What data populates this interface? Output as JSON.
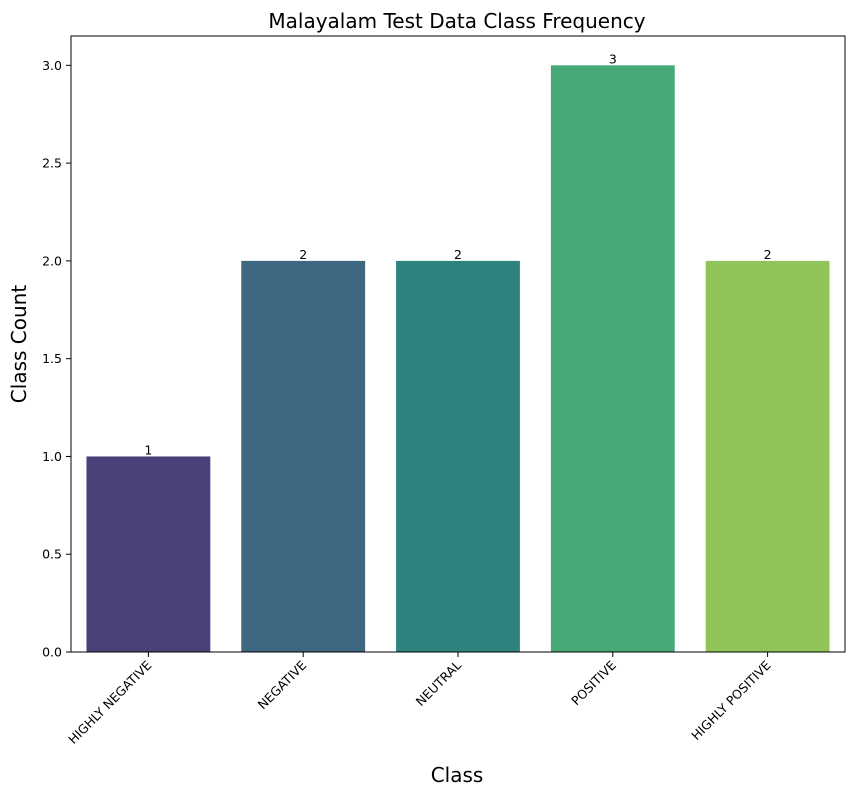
{
  "chart_data": {
    "type": "bar",
    "title": "Malayalam Test Data Class Frequency",
    "xlabel": "Class",
    "ylabel": "Class Count",
    "categories": [
      "HIGHLY NEGATIVE",
      "NEGATIVE",
      "NEUTRAL",
      "POSITIVE",
      "HIGHLY POSITIVE"
    ],
    "values": [
      1,
      2,
      2,
      3,
      2
    ],
    "data_labels": [
      "1",
      "2",
      "2",
      "3",
      "2"
    ],
    "colors": [
      "#4a4178",
      "#3e6882",
      "#2f837e",
      "#47a878",
      "#8fc458"
    ],
    "ylim": [
      0,
      3.15
    ],
    "yticks": [
      0.0,
      0.5,
      1.0,
      1.5,
      2.0,
      2.5,
      3.0
    ],
    "ytick_labels": [
      "0.0",
      "0.5",
      "1.0",
      "1.5",
      "2.0",
      "2.5",
      "3.0"
    ],
    "grid": false,
    "legend": "none"
  }
}
